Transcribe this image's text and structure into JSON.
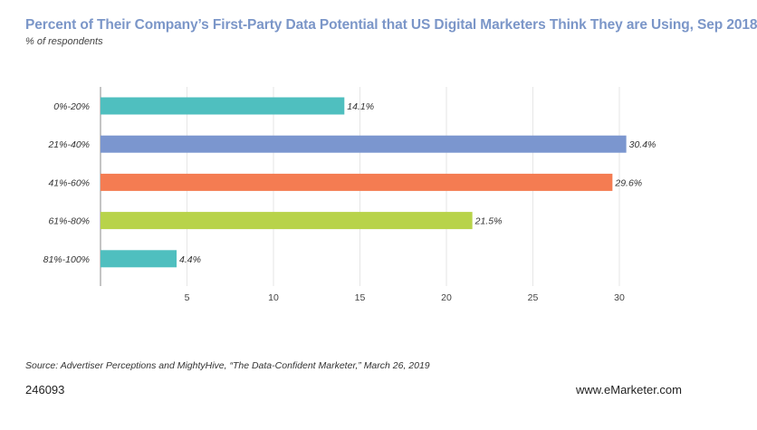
{
  "chart_data": {
    "type": "bar",
    "orientation": "horizontal",
    "title": "Percent of Their Company’s First-Party Data Potential that US Digital Marketers Think They are Using, Sep 2018",
    "subtitle": "% of respondents",
    "categories": [
      "0%-20%",
      "21%-40%",
      "41%-60%",
      "61%-80%",
      "81%-100%"
    ],
    "values": [
      14.1,
      30.4,
      29.6,
      21.5,
      4.4
    ],
    "value_labels": [
      "14.1%",
      "30.4%",
      "29.6%",
      "21.5%",
      "4.4%"
    ],
    "colors": [
      "#4fbfbf",
      "#7b96cf",
      "#f47c52",
      "#b8d34a",
      "#4fbfbf"
    ],
    "xlim": [
      0,
      30
    ],
    "xticks": [
      5,
      10,
      15,
      20,
      25,
      30
    ],
    "xlabel": "",
    "ylabel": "",
    "grid": "vertical"
  },
  "footer": {
    "source": "Source: Advertiser Perceptions and MightyHive, “The Data-Confident Marketer,” March 26, 2019",
    "chart_id": "246093",
    "brand": "www.eMarketer.com"
  }
}
